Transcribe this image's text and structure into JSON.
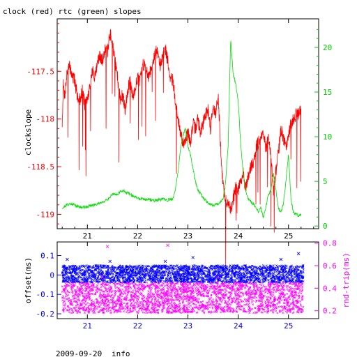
{
  "chart_data": [
    {
      "type": "line",
      "title": "clock (red) rtc (green) slopes",
      "ylabel": "clockslope",
      "xlim": [
        20.4,
        25.6
      ],
      "ylim": [
        -119.15,
        -116.95
      ],
      "y2lim": [
        -0.3,
        23.2
      ],
      "xticks": [
        21,
        22,
        23,
        24,
        25
      ],
      "yticks": [
        -119,
        -118.5,
        -118,
        -117.5
      ],
      "y2ticks": [
        0,
        5,
        10,
        15,
        20
      ],
      "grid": false,
      "colors": {
        "clock": "#ff0000",
        "rtc": "#00dd00",
        "axis": "#000000"
      },
      "series": [
        {
          "axis": "left",
          "color": "#ff0000",
          "x": [
            20.5,
            20.52,
            20.55,
            20.6,
            20.65,
            20.7,
            20.75,
            20.8,
            20.85,
            20.9,
            20.95,
            21.0,
            21.05,
            21.1,
            21.15,
            21.2,
            21.25,
            21.3,
            21.35,
            21.4,
            21.45,
            21.5,
            21.55,
            21.6,
            21.65,
            21.7,
            21.75,
            21.8,
            21.85,
            21.9,
            21.95,
            22.0,
            22.05,
            22.1,
            22.15,
            22.2,
            22.25,
            22.3,
            22.35,
            22.4,
            22.45,
            22.5,
            22.55,
            22.6,
            22.65,
            22.7,
            22.75,
            22.8,
            22.85,
            22.9,
            22.95,
            23.0,
            23.05,
            23.1,
            23.15,
            23.2,
            23.25,
            23.3,
            23.35,
            23.4,
            23.45,
            23.5,
            23.55,
            23.6,
            23.65,
            23.7,
            23.75,
            23.8,
            23.85,
            23.9,
            23.95,
            24.0,
            24.05,
            24.1,
            24.15,
            24.2,
            24.25,
            24.3,
            24.35,
            24.4,
            24.45,
            24.5,
            24.55,
            24.6,
            24.65,
            24.7,
            24.75,
            24.8,
            24.85,
            24.9,
            24.95,
            25.0,
            25.05,
            25.1,
            25.15,
            25.2,
            25.25
          ],
          "y": [
            -118.05,
            -117.65,
            -117.75,
            -117.5,
            -117.45,
            -117.55,
            -117.6,
            -117.75,
            -117.8,
            -117.7,
            -117.85,
            -117.8,
            -117.65,
            -117.5,
            -117.55,
            -117.4,
            -117.35,
            -117.4,
            -117.25,
            -117.3,
            -117.1,
            -117.2,
            -117.4,
            -117.55,
            -117.8,
            -117.75,
            -117.9,
            -117.7,
            -117.6,
            -117.75,
            -117.7,
            -117.55,
            -117.6,
            -117.45,
            -117.4,
            -117.55,
            -117.5,
            -117.4,
            -117.3,
            -117.3,
            -117.45,
            -117.35,
            -117.25,
            -117.4,
            -117.55,
            -117.6,
            -117.8,
            -118.0,
            -118.15,
            -118.25,
            -118.2,
            -118.15,
            -118.25,
            -118.05,
            -118.1,
            -118.0,
            -118.15,
            -118.05,
            -117.95,
            -117.9,
            -118.1,
            -117.85,
            -117.95,
            -117.75,
            -118.3,
            -118.7,
            -118.85,
            -118.9,
            -118.95,
            -118.85,
            -118.7,
            -118.75,
            -118.65,
            -118.55,
            -118.75,
            -118.6,
            -118.5,
            -118.45,
            -118.3,
            -118.25,
            -118.2,
            -118.15,
            -118.3,
            -118.2,
            -118.4,
            -118.75,
            -118.55,
            -118.35,
            -118.1,
            -118.2,
            -118.3,
            -118.15,
            -118.05,
            -118.0,
            -117.95,
            -117.95,
            -117.9
          ]
        },
        {
          "axis": "right",
          "color": "#00dd00",
          "x": [
            20.5,
            20.6,
            20.7,
            20.8,
            20.9,
            21.0,
            21.1,
            21.2,
            21.3,
            21.4,
            21.45,
            21.5,
            21.55,
            21.6,
            21.7,
            21.8,
            21.9,
            22.0,
            22.1,
            22.2,
            22.3,
            22.4,
            22.5,
            22.6,
            22.7,
            22.75,
            22.8,
            22.85,
            22.9,
            22.95,
            23.0,
            23.05,
            23.1,
            23.15,
            23.2,
            23.3,
            23.4,
            23.5,
            23.6,
            23.7,
            23.75,
            23.8,
            23.85,
            23.9,
            23.95,
            24.0,
            24.05,
            24.1,
            24.15,
            24.2,
            24.3,
            24.4,
            24.45,
            24.5,
            24.55,
            24.6,
            24.65,
            24.7,
            24.8,
            24.85,
            24.9,
            24.95,
            25.0,
            25.05,
            25.1,
            25.2,
            25.25
          ],
          "y": [
            2.0,
            2.4,
            2.5,
            2.2,
            2.1,
            2.2,
            2.3,
            2.5,
            2.7,
            2.9,
            3.3,
            3.6,
            3.5,
            3.6,
            4.0,
            3.7,
            3.4,
            3.1,
            3.0,
            3.0,
            2.9,
            2.9,
            3.0,
            2.9,
            3.0,
            4.0,
            6.0,
            8.5,
            10.0,
            11.0,
            9.0,
            8.0,
            6.5,
            5.0,
            4.0,
            3.2,
            2.6,
            2.3,
            2.5,
            3.0,
            5.0,
            9.0,
            21.0,
            17.0,
            16.0,
            14.0,
            9.0,
            6.0,
            4.0,
            3.0,
            2.5,
            1.6,
            2.0,
            1.0,
            2.0,
            3.5,
            4.0,
            6.0,
            2.0,
            1.5,
            2.5,
            5.0,
            8.0,
            3.0,
            1.5,
            1.2,
            1.3
          ]
        }
      ]
    },
    {
      "type": "scatter",
      "ylabel": "offset(ms)",
      "y2label": "rnd-trip(ms)",
      "xlim": [
        20.4,
        25.6
      ],
      "ylim": [
        -0.225,
        0.17
      ],
      "y2lim": [
        0.13,
        0.81
      ],
      "xticks": [
        21,
        22,
        23,
        24,
        25
      ],
      "yticks": [
        -0.2,
        -0.1,
        0,
        0.1
      ],
      "y2ticks": [
        0.2,
        0.4,
        0.6,
        0.8
      ],
      "grid": false,
      "colors": {
        "offset": "#0000ff",
        "round_trip": "#ff00ff"
      },
      "series": [
        {
          "axis": "left",
          "color": "#0000ff",
          "x_range": [
            20.5,
            25.3
          ],
          "band": [
            -0.04,
            0.05
          ],
          "outliers": [
            [
              20.6,
              0.08
            ],
            [
              21.45,
              0.07
            ],
            [
              22.55,
              0.07
            ],
            [
              23.1,
              0.09
            ],
            [
              24.85,
              0.08
            ],
            [
              25.2,
              0.11
            ]
          ]
        },
        {
          "axis": "right",
          "color": "#ff00ff",
          "x_range": [
            20.5,
            25.3
          ],
          "band": [
            0.18,
            0.45
          ],
          "outliers": [
            [
              21.4,
              0.77
            ],
            [
              22.6,
              0.78
            ],
            [
              21.3,
              0.5
            ],
            [
              23.6,
              0.5
            ]
          ]
        }
      ]
    }
  ],
  "footer": {
    "date": "2009-09-20",
    "info": "info"
  }
}
